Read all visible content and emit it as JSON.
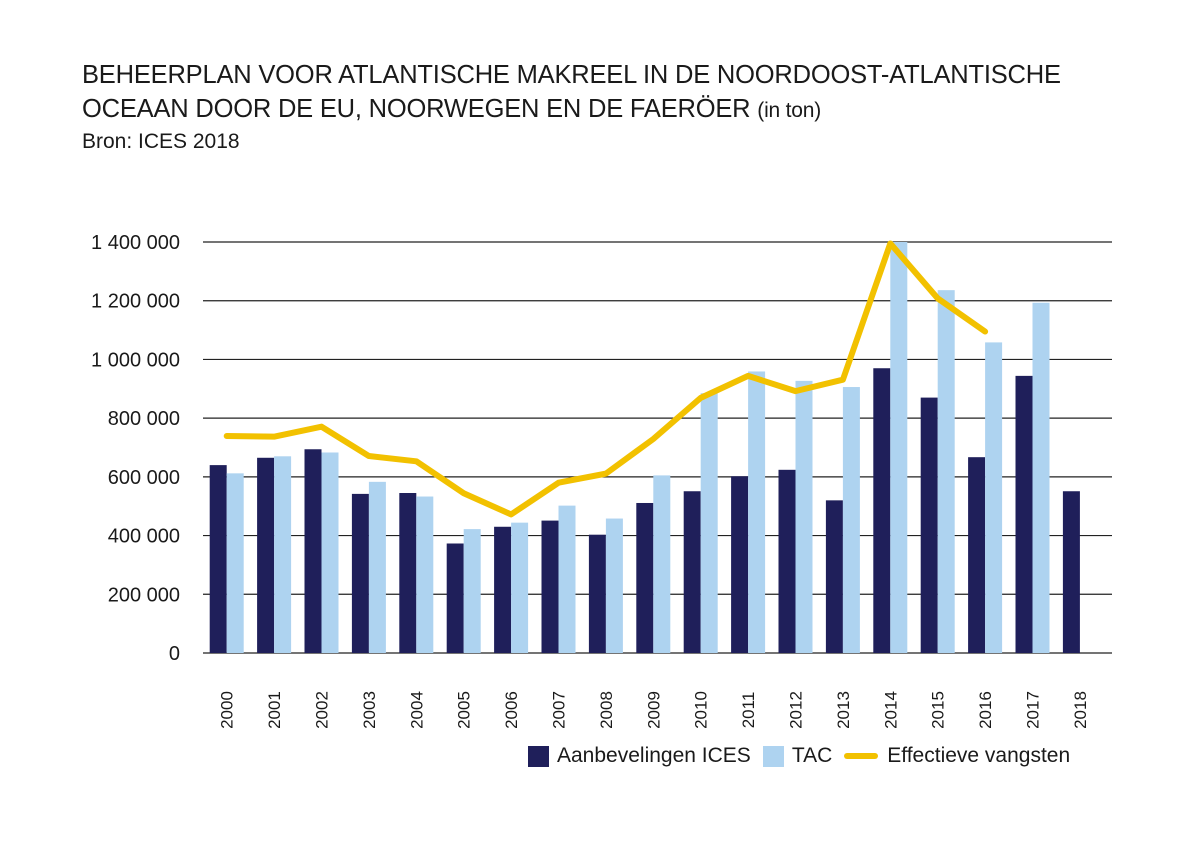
{
  "header": {
    "title_line1": "BEHEERPLAN VOOR ATLANTISCHE MAKREEL IN DE NOORDOOST-ATLANTISCHE",
    "title_line2": "OCEAAN DOOR DE EU, NOORWEGEN EN DE FAERÖER",
    "title_unit": "(in ton)",
    "source": "Bron: ICES 2018"
  },
  "colors": {
    "ices": "#1f1f5a",
    "tac": "#aed3f0",
    "catches": "#f2c100",
    "grid": "#222222"
  },
  "chart_data": {
    "type": "bar",
    "title": "BEHEERPLAN VOOR ATLANTISCHE MAKREEL IN DE NOORDOOST-ATLANTISCHE OCEAAN DOOR DE EU, NOORWEGEN EN DE FAERÖER (in ton)",
    "categories": [
      "2000",
      "2001",
      "2002",
      "2003",
      "2004",
      "2005",
      "2006",
      "2007",
      "2008",
      "2009",
      "2010",
      "2011",
      "2012",
      "2013",
      "2014",
      "2015",
      "2016",
      "2017",
      "2018"
    ],
    "ylim": [
      0,
      1400000
    ],
    "yticks": [
      0,
      200000,
      400000,
      600000,
      800000,
      1000000,
      1200000,
      1400000
    ],
    "ytick_labels": [
      "0",
      "200 000",
      "400 000",
      "600 000",
      "800 000",
      "1 000 000",
      "1 200 000",
      "1 400 000"
    ],
    "grid": true,
    "legend_position": "bottom-right",
    "series": [
      {
        "name": "Aanbevelingen ICES",
        "type": "bar",
        "values": [
          640000,
          665000,
          694000,
          542000,
          545000,
          373000,
          430000,
          451000,
          403000,
          511000,
          551000,
          602000,
          624000,
          520000,
          970000,
          870000,
          667000,
          944000,
          551000
        ]
      },
      {
        "name": "TAC",
        "type": "bar",
        "values": [
          612000,
          670000,
          683000,
          583000,
          533000,
          422000,
          444000,
          502000,
          458000,
          605000,
          885000,
          959000,
          927000,
          906000,
          1400000,
          1236000,
          1058000,
          1193000,
          null
        ]
      },
      {
        "name": "Effectieve vangsten",
        "type": "line",
        "values": [
          739000,
          737000,
          771000,
          671000,
          653000,
          544000,
          472000,
          580000,
          611000,
          729000,
          869000,
          944000,
          892000,
          931000,
          1395000,
          1208000,
          1095000,
          null,
          null
        ]
      }
    ]
  }
}
